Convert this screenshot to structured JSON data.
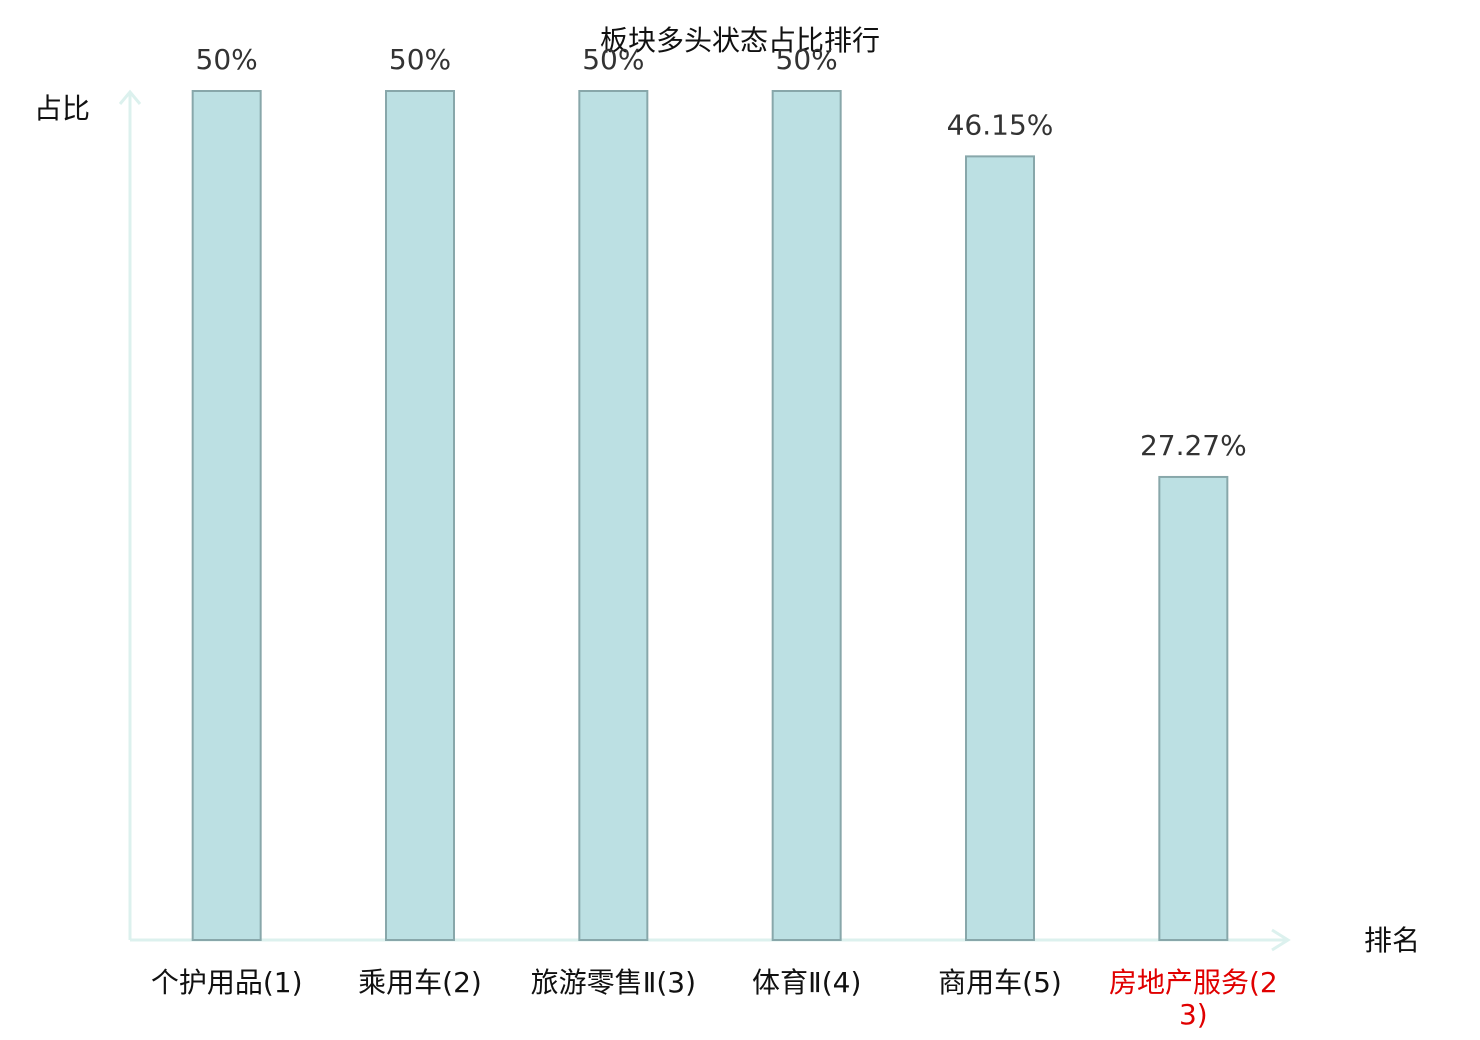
{
  "chart_data": {
    "type": "bar",
    "title": "板块多头状态占比排行",
    "y_label": "占比",
    "x_label": "排名",
    "categories": [
      "个护用品(1)",
      "乘用车(2)",
      "旅游零售Ⅱ(3)",
      "体育Ⅱ(4)",
      "商用车(5)",
      "房地产服务(23)"
    ],
    "category_colors": [
      "#111111",
      "#111111",
      "#111111",
      "#111111",
      "#111111",
      "#e00000"
    ],
    "values": [
      50,
      50,
      50,
      50,
      46.15,
      27.27
    ],
    "value_labels": [
      "50%",
      "50%",
      "50%",
      "50%",
      "46.15%",
      "27.27%"
    ],
    "color": "#bce0e3",
    "edge_color": "#88a7aa",
    "ylim": [
      0,
      50
    ]
  }
}
